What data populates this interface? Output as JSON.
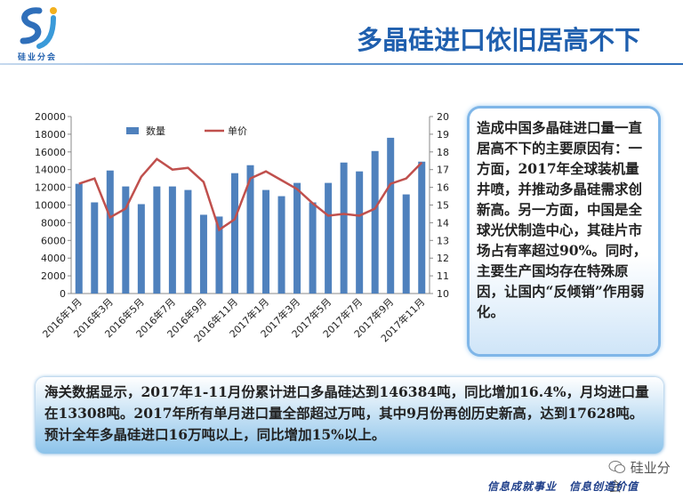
{
  "header": {
    "title": "多晶硅进口依旧居高不下",
    "logo_text": "硅业分会"
  },
  "chart_data": {
    "type": "bar",
    "categories": [
      "2016年1月",
      null,
      "2016年3月",
      null,
      "2016年5月",
      null,
      "2016年7月",
      null,
      "2016年9月",
      null,
      "2016年11月",
      null,
      "2017年1月",
      null,
      "2017年3月",
      null,
      "2017年5月",
      null,
      "2017年7月",
      null,
      "2017年9月",
      null,
      "2017年11月"
    ],
    "series": [
      {
        "name": "数量",
        "color": "#4f81bd",
        "values": [
          12400,
          10300,
          13900,
          12100,
          10100,
          12100,
          12100,
          11700,
          8900,
          8700,
          13600,
          14500,
          11700,
          11000,
          12500,
          10300,
          12500,
          14800,
          13800,
          16100,
          17600,
          11200,
          14900
        ]
      },
      {
        "name": "单价",
        "color": "#c0504d",
        "type": "line",
        "axis": "y2",
        "values": [
          16.2,
          16.5,
          14.3,
          14.8,
          16.6,
          17.6,
          17.0,
          17.1,
          16.3,
          13.6,
          14.2,
          16.5,
          16.9,
          16.4,
          15.9,
          15.1,
          14.4,
          14.5,
          14.4,
          14.8,
          16.2,
          16.5,
          17.4
        ]
      }
    ],
    "ylim": [
      0,
      20000
    ],
    "yticks": [
      0,
      2000,
      4000,
      6000,
      8000,
      10000,
      12000,
      14000,
      16000,
      18000,
      20000
    ],
    "y2lim": [
      10,
      20
    ],
    "y2ticks": [
      10,
      11,
      12,
      13,
      14,
      15,
      16,
      17,
      18,
      19,
      20
    ],
    "legend": "top-left"
  },
  "side_note": "造成中国多晶硅进口量一直居高不下的主要原因有：一方面，2017年全球装机量井喷，并推动多晶硅需求创新高。另一方面，中国是全球光伏制造中心，其硅片市场占有率超过90%。同时，主要生产国均存在特殊原因，让国内“反倾销”作用弱化。",
  "summary": "海关数据显示，2017年1-11月份累计进口多晶硅达到146384吨，同比增加16.4%，月均进口量在13308吨。2017年所有单月进口量全部超过万吨，其中9月份再创历史新高，达到17628吨。预计全年多晶硅进口16万吨以上，同比增加15%以上。",
  "footer": {
    "slogan_1": "信息成就事业",
    "slogan_2": "信息创造价值",
    "watermark": "硅业分会"
  }
}
